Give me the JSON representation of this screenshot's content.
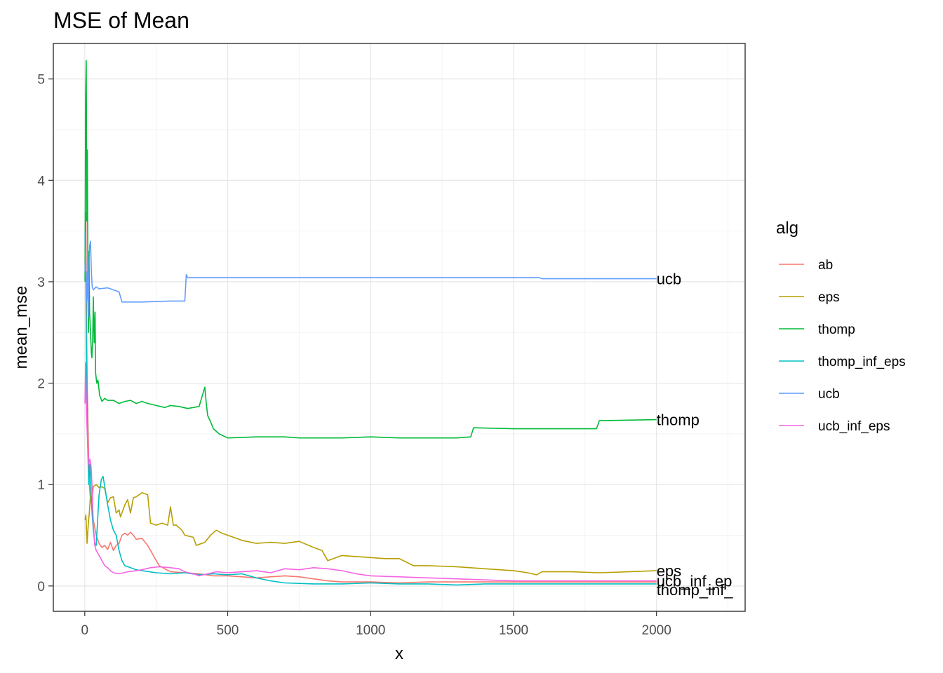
{
  "chart_data": {
    "type": "line",
    "title": "MSE of Mean",
    "xlabel": "x",
    "ylabel": "mean_mse",
    "xlim": [
      -110,
      2310
    ],
    "ylim": [
      -0.25,
      5.35
    ],
    "x_ticks": [
      0,
      500,
      1000,
      1500,
      2000
    ],
    "y_ticks": [
      0,
      1,
      2,
      3,
      4,
      5
    ],
    "grid": true,
    "legend": {
      "title": "alg",
      "position": "right"
    },
    "series": [
      {
        "name": "ab",
        "color": "#F8766D",
        "end_label": "",
        "points": [
          [
            1,
            3.2
          ],
          [
            4,
            3.68
          ],
          [
            6,
            2.6
          ],
          [
            9,
            1.9
          ],
          [
            12,
            1.5
          ],
          [
            16,
            1.0
          ],
          [
            20,
            0.85
          ],
          [
            25,
            0.8
          ],
          [
            30,
            0.65
          ],
          [
            40,
            0.5
          ],
          [
            50,
            0.42
          ],
          [
            60,
            0.38
          ],
          [
            70,
            0.4
          ],
          [
            80,
            0.36
          ],
          [
            90,
            0.43
          ],
          [
            100,
            0.35
          ],
          [
            110,
            0.4
          ],
          [
            120,
            0.42
          ],
          [
            130,
            0.5
          ],
          [
            140,
            0.52
          ],
          [
            150,
            0.5
          ],
          [
            160,
            0.53
          ],
          [
            170,
            0.5
          ],
          [
            180,
            0.46
          ],
          [
            200,
            0.47
          ],
          [
            220,
            0.4
          ],
          [
            240,
            0.3
          ],
          [
            260,
            0.2
          ],
          [
            280,
            0.17
          ],
          [
            300,
            0.14
          ],
          [
            350,
            0.13
          ],
          [
            400,
            0.12
          ],
          [
            450,
            0.1
          ],
          [
            500,
            0.1
          ],
          [
            550,
            0.09
          ],
          [
            600,
            0.08
          ],
          [
            650,
            0.09
          ],
          [
            700,
            0.1
          ],
          [
            750,
            0.09
          ],
          [
            800,
            0.07
          ],
          [
            850,
            0.05
          ],
          [
            900,
            0.04
          ],
          [
            1000,
            0.04
          ],
          [
            1100,
            0.03
          ],
          [
            1200,
            0.04
          ],
          [
            1400,
            0.04
          ],
          [
            1600,
            0.04
          ],
          [
            1800,
            0.04
          ],
          [
            2000,
            0.04
          ]
        ]
      },
      {
        "name": "eps",
        "color": "#B79F00",
        "end_label": "eps",
        "points": [
          [
            1,
            0.65
          ],
          [
            4,
            0.7
          ],
          [
            8,
            0.42
          ],
          [
            12,
            0.6
          ],
          [
            16,
            0.72
          ],
          [
            20,
            0.9
          ],
          [
            25,
            0.85
          ],
          [
            30,
            0.98
          ],
          [
            40,
            1.0
          ],
          [
            50,
            0.97
          ],
          [
            60,
            0.98
          ],
          [
            70,
            0.96
          ],
          [
            80,
            0.82
          ],
          [
            90,
            0.87
          ],
          [
            100,
            0.88
          ],
          [
            110,
            0.72
          ],
          [
            120,
            0.75
          ],
          [
            125,
            0.68
          ],
          [
            140,
            0.8
          ],
          [
            150,
            0.85
          ],
          [
            160,
            0.72
          ],
          [
            170,
            0.87
          ],
          [
            180,
            0.88
          ],
          [
            200,
            0.92
          ],
          [
            220,
            0.9
          ],
          [
            230,
            0.62
          ],
          [
            250,
            0.6
          ],
          [
            270,
            0.62
          ],
          [
            290,
            0.6
          ],
          [
            300,
            0.78
          ],
          [
            310,
            0.6
          ],
          [
            320,
            0.6
          ],
          [
            340,
            0.55
          ],
          [
            350,
            0.5
          ],
          [
            380,
            0.48
          ],
          [
            390,
            0.4
          ],
          [
            420,
            0.43
          ],
          [
            440,
            0.5
          ],
          [
            460,
            0.55
          ],
          [
            480,
            0.52
          ],
          [
            500,
            0.5
          ],
          [
            520,
            0.48
          ],
          [
            550,
            0.45
          ],
          [
            600,
            0.42
          ],
          [
            650,
            0.43
          ],
          [
            700,
            0.42
          ],
          [
            750,
            0.44
          ],
          [
            800,
            0.38
          ],
          [
            830,
            0.35
          ],
          [
            850,
            0.25
          ],
          [
            880,
            0.28
          ],
          [
            900,
            0.3
          ],
          [
            950,
            0.29
          ],
          [
            1000,
            0.28
          ],
          [
            1050,
            0.27
          ],
          [
            1100,
            0.27
          ],
          [
            1150,
            0.2
          ],
          [
            1200,
            0.2
          ],
          [
            1300,
            0.19
          ],
          [
            1400,
            0.17
          ],
          [
            1450,
            0.16
          ],
          [
            1500,
            0.15
          ],
          [
            1550,
            0.13
          ],
          [
            1580,
            0.11
          ],
          [
            1600,
            0.14
          ],
          [
            1700,
            0.14
          ],
          [
            1800,
            0.13
          ],
          [
            1900,
            0.14
          ],
          [
            2000,
            0.15
          ]
        ]
      },
      {
        "name": "thomp",
        "color": "#00BA38",
        "end_label": "thomp",
        "points": [
          [
            1,
            3.0
          ],
          [
            3,
            4.8
          ],
          [
            5,
            5.18
          ],
          [
            7,
            3.6
          ],
          [
            9,
            4.3
          ],
          [
            11,
            3.0
          ],
          [
            13,
            2.5
          ],
          [
            15,
            3.3
          ],
          [
            17,
            2.7
          ],
          [
            20,
            2.5
          ],
          [
            23,
            2.3
          ],
          [
            25,
            2.25
          ],
          [
            28,
            2.45
          ],
          [
            30,
            2.85
          ],
          [
            33,
            2.4
          ],
          [
            36,
            2.7
          ],
          [
            38,
            2.1
          ],
          [
            42,
            2.0
          ],
          [
            46,
            2.03
          ],
          [
            52,
            1.88
          ],
          [
            60,
            1.82
          ],
          [
            70,
            1.85
          ],
          [
            80,
            1.83
          ],
          [
            100,
            1.83
          ],
          [
            120,
            1.8
          ],
          [
            140,
            1.82
          ],
          [
            160,
            1.83
          ],
          [
            180,
            1.8
          ],
          [
            200,
            1.82
          ],
          [
            220,
            1.8
          ],
          [
            250,
            1.78
          ],
          [
            280,
            1.76
          ],
          [
            300,
            1.78
          ],
          [
            330,
            1.77
          ],
          [
            360,
            1.75
          ],
          [
            400,
            1.77
          ],
          [
            420,
            1.96
          ],
          [
            425,
            1.8
          ],
          [
            430,
            1.68
          ],
          [
            440,
            1.62
          ],
          [
            450,
            1.55
          ],
          [
            470,
            1.5
          ],
          [
            500,
            1.46
          ],
          [
            600,
            1.47
          ],
          [
            700,
            1.47
          ],
          [
            750,
            1.46
          ],
          [
            900,
            1.46
          ],
          [
            1000,
            1.47
          ],
          [
            1100,
            1.46
          ],
          [
            1300,
            1.46
          ],
          [
            1350,
            1.47
          ],
          [
            1360,
            1.56
          ],
          [
            1500,
            1.55
          ],
          [
            1790,
            1.55
          ],
          [
            1800,
            1.63
          ],
          [
            2000,
            1.64
          ]
        ]
      },
      {
        "name": "thomp_inf_eps",
        "color": "#00BFC4",
        "end_label": "thomp_inf_",
        "points": [
          [
            1,
            3.5
          ],
          [
            4,
            3.0
          ],
          [
            6,
            2.2
          ],
          [
            10,
            1.4
          ],
          [
            14,
            1.0
          ],
          [
            18,
            1.2
          ],
          [
            22,
            0.9
          ],
          [
            26,
            0.7
          ],
          [
            30,
            0.55
          ],
          [
            35,
            0.42
          ],
          [
            40,
            0.4
          ],
          [
            50,
            0.9
          ],
          [
            58,
            1.05
          ],
          [
            64,
            1.08
          ],
          [
            70,
            0.98
          ],
          [
            80,
            0.8
          ],
          [
            90,
            0.65
          ],
          [
            100,
            0.55
          ],
          [
            110,
            0.5
          ],
          [
            120,
            0.35
          ],
          [
            130,
            0.25
          ],
          [
            140,
            0.2
          ],
          [
            160,
            0.18
          ],
          [
            180,
            0.16
          ],
          [
            200,
            0.15
          ],
          [
            250,
            0.13
          ],
          [
            300,
            0.12
          ],
          [
            350,
            0.13
          ],
          [
            400,
            0.11
          ],
          [
            450,
            0.12
          ],
          [
            500,
            0.11
          ],
          [
            550,
            0.12
          ],
          [
            600,
            0.08
          ],
          [
            650,
            0.05
          ],
          [
            700,
            0.03
          ],
          [
            800,
            0.02
          ],
          [
            900,
            0.02
          ],
          [
            1000,
            0.03
          ],
          [
            1100,
            0.02
          ],
          [
            1200,
            0.02
          ],
          [
            1300,
            0.01
          ],
          [
            1400,
            0.02
          ],
          [
            1600,
            0.02
          ],
          [
            1800,
            0.02
          ],
          [
            2000,
            0.02
          ]
        ]
      },
      {
        "name": "ucb",
        "color": "#619CFF",
        "end_label": "ucb",
        "points": [
          [
            1,
            3.1
          ],
          [
            3,
            3.3
          ],
          [
            6,
            2.8
          ],
          [
            9,
            3.1
          ],
          [
            12,
            2.65
          ],
          [
            15,
            3.2
          ],
          [
            17,
            3.35
          ],
          [
            20,
            3.4
          ],
          [
            23,
            3.1
          ],
          [
            26,
            2.95
          ],
          [
            30,
            2.92
          ],
          [
            40,
            2.95
          ],
          [
            50,
            2.93
          ],
          [
            80,
            2.94
          ],
          [
            100,
            2.92
          ],
          [
            120,
            2.9
          ],
          [
            130,
            2.8
          ],
          [
            200,
            2.8
          ],
          [
            300,
            2.81
          ],
          [
            350,
            2.81
          ],
          [
            355,
            3.07
          ],
          [
            360,
            3.04
          ],
          [
            500,
            3.04
          ],
          [
            1000,
            3.04
          ],
          [
            1500,
            3.04
          ],
          [
            1590,
            3.04
          ],
          [
            1600,
            3.03
          ],
          [
            2000,
            3.03
          ]
        ]
      },
      {
        "name": "ucb_inf_eps",
        "color": "#F564E3",
        "end_label": "ucb_inf_ep",
        "points": [
          [
            1,
            1.8
          ],
          [
            3,
            2.2
          ],
          [
            6,
            1.7
          ],
          [
            10,
            1.4
          ],
          [
            14,
            1.2
          ],
          [
            18,
            1.25
          ],
          [
            22,
            1.18
          ],
          [
            26,
            0.95
          ],
          [
            30,
            0.6
          ],
          [
            35,
            0.4
          ],
          [
            40,
            0.35
          ],
          [
            50,
            0.3
          ],
          [
            60,
            0.25
          ],
          [
            70,
            0.2
          ],
          [
            80,
            0.18
          ],
          [
            90,
            0.15
          ],
          [
            100,
            0.13
          ],
          [
            120,
            0.12
          ],
          [
            150,
            0.14
          ],
          [
            180,
            0.15
          ],
          [
            200,
            0.16
          ],
          [
            230,
            0.18
          ],
          [
            260,
            0.19
          ],
          [
            300,
            0.18
          ],
          [
            330,
            0.17
          ],
          [
            350,
            0.14
          ],
          [
            380,
            0.12
          ],
          [
            400,
            0.1
          ],
          [
            430,
            0.12
          ],
          [
            460,
            0.14
          ],
          [
            500,
            0.13
          ],
          [
            550,
            0.14
          ],
          [
            600,
            0.15
          ],
          [
            650,
            0.13
          ],
          [
            700,
            0.17
          ],
          [
            750,
            0.16
          ],
          [
            800,
            0.18
          ],
          [
            850,
            0.17
          ],
          [
            900,
            0.15
          ],
          [
            950,
            0.12
          ],
          [
            1000,
            0.1
          ],
          [
            1100,
            0.09
          ],
          [
            1200,
            0.08
          ],
          [
            1300,
            0.07
          ],
          [
            1400,
            0.06
          ],
          [
            1500,
            0.05
          ],
          [
            1600,
            0.05
          ],
          [
            1800,
            0.05
          ],
          [
            2000,
            0.05
          ]
        ]
      }
    ]
  }
}
